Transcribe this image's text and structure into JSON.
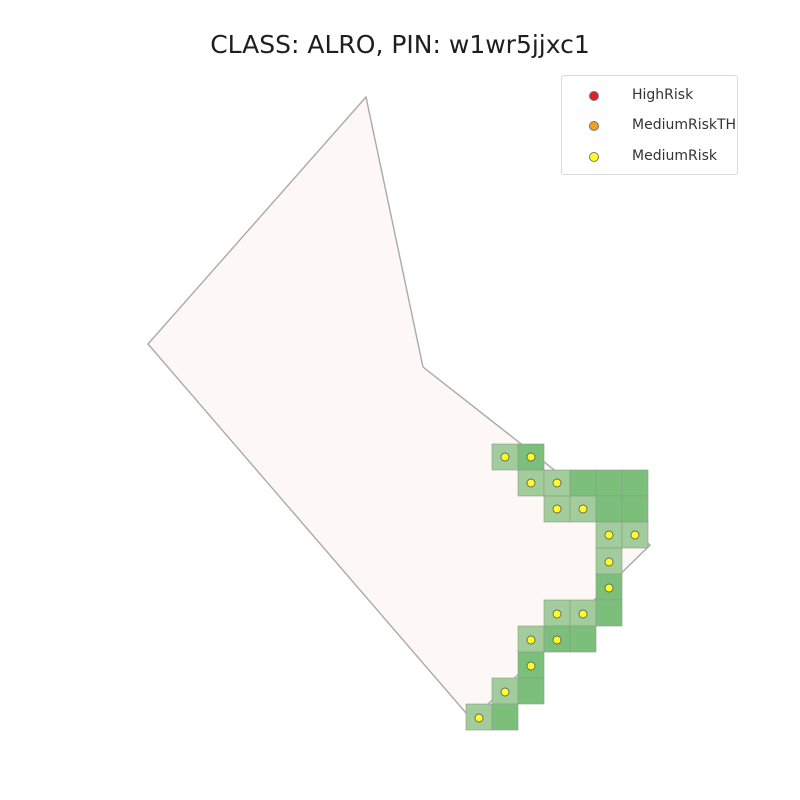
{
  "title": "CLASS: ALRO, PIN: w1wr5jjxc1",
  "colors": {
    "parcel_fill": "#fdf8f5",
    "parcel_stroke": "#aaaaaa",
    "cell_light": "#a2cc9b",
    "cell_dark": "#7bbf7b",
    "cell_stroke": "#8a9a8a",
    "high_risk": "#dd2020",
    "medium_risk_th": "#f0a020",
    "medium_risk": "#ffff22"
  },
  "legend": {
    "items": [
      {
        "label": "HighRisk",
        "color": "#dd2020"
      },
      {
        "label": "MediumRiskTH",
        "color": "#f0a020"
      },
      {
        "label": "MediumRisk",
        "color": "#ffff22"
      }
    ]
  }
}
